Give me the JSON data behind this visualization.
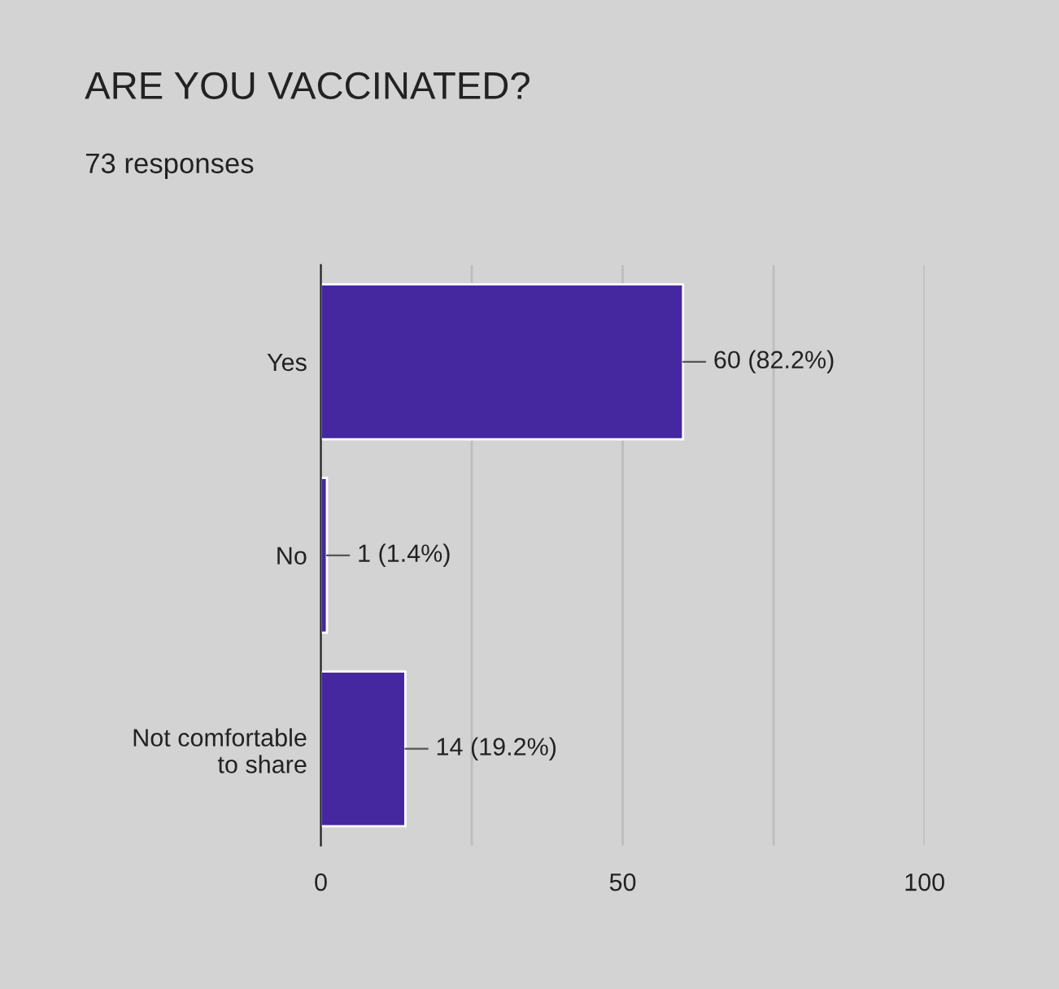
{
  "chart_data": {
    "type": "bar",
    "orientation": "horizontal",
    "title": "ARE YOU VACCINATED?",
    "subtitle": "73 responses",
    "categories": [
      "Yes",
      "No",
      "Not comfortable\nto share"
    ],
    "values": [
      60,
      1,
      14
    ],
    "color": "#4527a0",
    "value_labels": [
      "60 (82.2%)",
      "1 (1.4%)",
      "14 (19.2%)"
    ],
    "xlim": [
      0,
      100
    ],
    "xticks": [
      0,
      {
        "value": 25,
        "label": null
      },
      50,
      {
        "value": 75,
        "label": null
      },
      100
    ],
    "grid": "x",
    "legend": false
  }
}
